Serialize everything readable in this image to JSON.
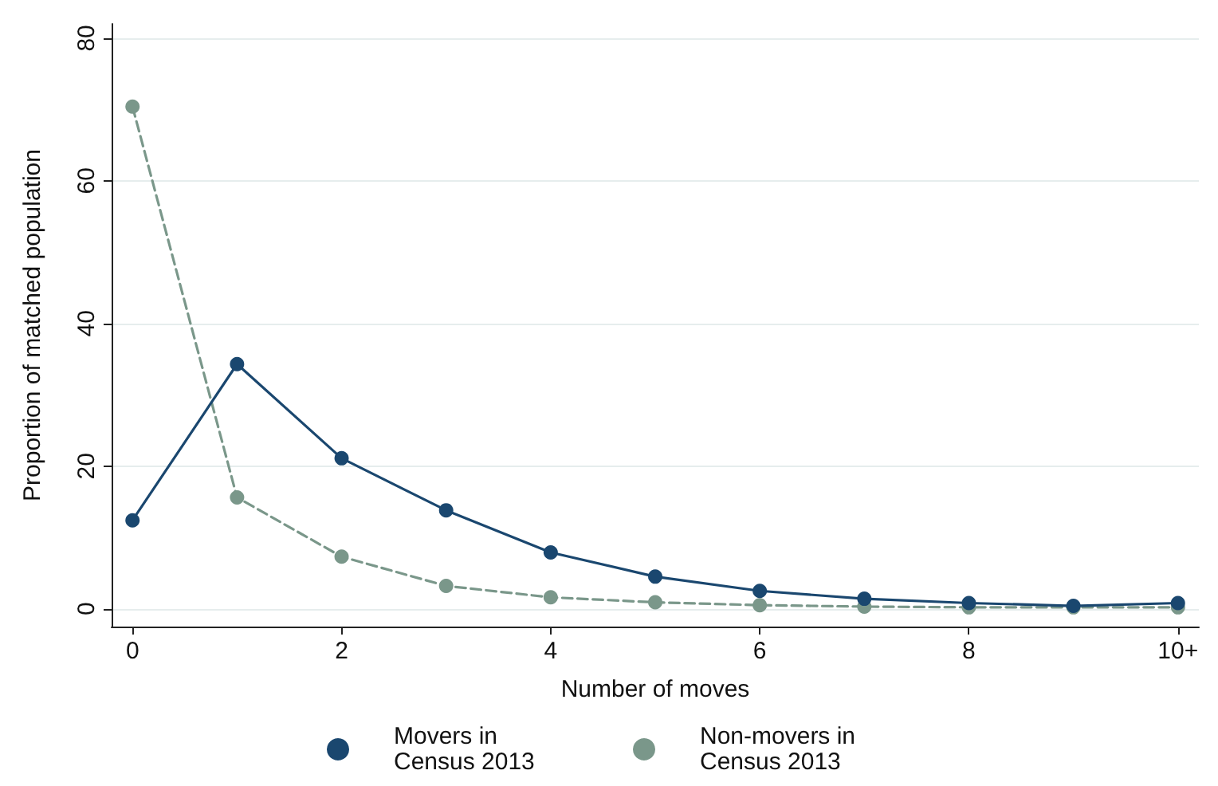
{
  "chart_data": {
    "type": "line",
    "xlabel": "Number of moves",
    "ylabel": "Proportion of matched population",
    "x": [
      0,
      1,
      2,
      3,
      4,
      5,
      6,
      7,
      8,
      9,
      10
    ],
    "series": [
      {
        "name": "Movers in Census 2013",
        "color": "#1a476f",
        "line_style": "solid",
        "values": [
          12.4,
          34.3,
          21.1,
          13.8,
          7.9,
          4.5,
          2.5,
          1.4,
          0.8,
          0.4,
          0.8
        ]
      },
      {
        "name": "Non-movers in Census 2013",
        "color": "#7a978a",
        "line_style": "dashed",
        "values": [
          70.4,
          15.6,
          7.3,
          3.2,
          1.6,
          0.9,
          0.5,
          0.3,
          0.2,
          0.2,
          0.2
        ]
      }
    ],
    "xlim": [
      -0.2,
      10.2
    ],
    "xticks": [
      0,
      2,
      4,
      6,
      8,
      {
        "value": 10,
        "label": "10+"
      }
    ],
    "ylim": [
      -2.5,
      82
    ],
    "yticks": [
      0,
      20,
      40,
      60,
      80
    ],
    "grid": "y",
    "legend": "bottom",
    "marker": "circle"
  }
}
